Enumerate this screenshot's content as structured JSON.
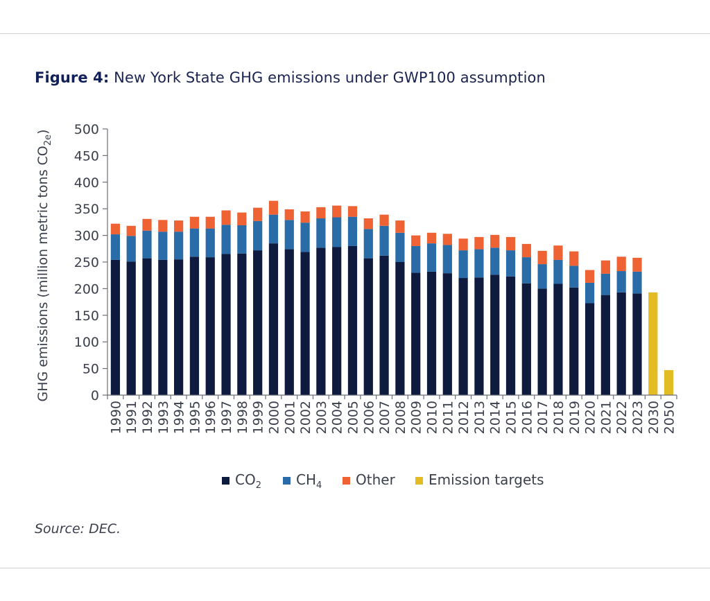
{
  "figure": {
    "label": "Figure 4:",
    "title_text": " New York State GHG emissions under GWP100 assumption",
    "source": "Source: DEC."
  },
  "chart_data": {
    "type": "bar",
    "stacked": true,
    "title": "New York State GHG emissions under GWP100 assumption",
    "ylabel": "GHG emissions (million metric tons CO2e)",
    "ylabel_main": "GHG emissions (million metric tons CO",
    "ylabel_sub": "2e",
    "ylabel_end": ")",
    "ylim": [
      0,
      500
    ],
    "yticks": [
      0,
      50,
      100,
      150,
      200,
      250,
      300,
      350,
      400,
      450,
      500
    ],
    "categories": [
      "1990",
      "1991",
      "1992",
      "1993",
      "1994",
      "1995",
      "1996",
      "1997",
      "1998",
      "1999",
      "2000",
      "2001",
      "2002",
      "2003",
      "2004",
      "2005",
      "2006",
      "2007",
      "2008",
      "2009",
      "2010",
      "2011",
      "2012",
      "2013",
      "2014",
      "2015",
      "2016",
      "2017",
      "2018",
      "2019",
      "2020",
      "2021",
      "2022",
      "2023",
      "2030",
      "2050"
    ],
    "series": [
      {
        "name": "CO2",
        "label_main": "CO",
        "label_sub": "2",
        "color": "#0f1a3f",
        "values": [
          254,
          251,
          257,
          254,
          255,
          260,
          259,
          265,
          266,
          272,
          285,
          274,
          269,
          277,
          278,
          280,
          257,
          262,
          250,
          230,
          232,
          229,
          220,
          221,
          226,
          223,
          210,
          200,
          209,
          202,
          173,
          188,
          193,
          191,
          null,
          null
        ]
      },
      {
        "name": "CH4",
        "label_main": "CH",
        "label_sub": "4",
        "color": "#2a6ca8",
        "values": [
          48,
          48,
          52,
          53,
          52,
          53,
          54,
          55,
          53,
          55,
          54,
          55,
          55,
          55,
          56,
          55,
          55,
          56,
          55,
          50,
          53,
          53,
          52,
          53,
          51,
          49,
          49,
          46,
          45,
          41,
          38,
          40,
          40,
          41,
          null,
          null
        ]
      },
      {
        "name": "Other",
        "label_main": "Other",
        "label_sub": "",
        "color": "#ef6234",
        "values": [
          20,
          19,
          22,
          22,
          21,
          22,
          22,
          27,
          24,
          25,
          26,
          20,
          21,
          21,
          22,
          20,
          20,
          21,
          23,
          20,
          20,
          21,
          22,
          23,
          24,
          25,
          25,
          25,
          27,
          27,
          24,
          25,
          27,
          26,
          null,
          null
        ]
      },
      {
        "name": "Emission targets",
        "label_main": "Emission targets",
        "label_sub": "",
        "color": "#e3bb23",
        "values": [
          null,
          null,
          null,
          null,
          null,
          null,
          null,
          null,
          null,
          null,
          null,
          null,
          null,
          null,
          null,
          null,
          null,
          null,
          null,
          null,
          null,
          null,
          null,
          null,
          null,
          null,
          null,
          null,
          null,
          null,
          null,
          null,
          null,
          null,
          193,
          47
        ]
      }
    ],
    "legend_position": "bottom-center"
  }
}
